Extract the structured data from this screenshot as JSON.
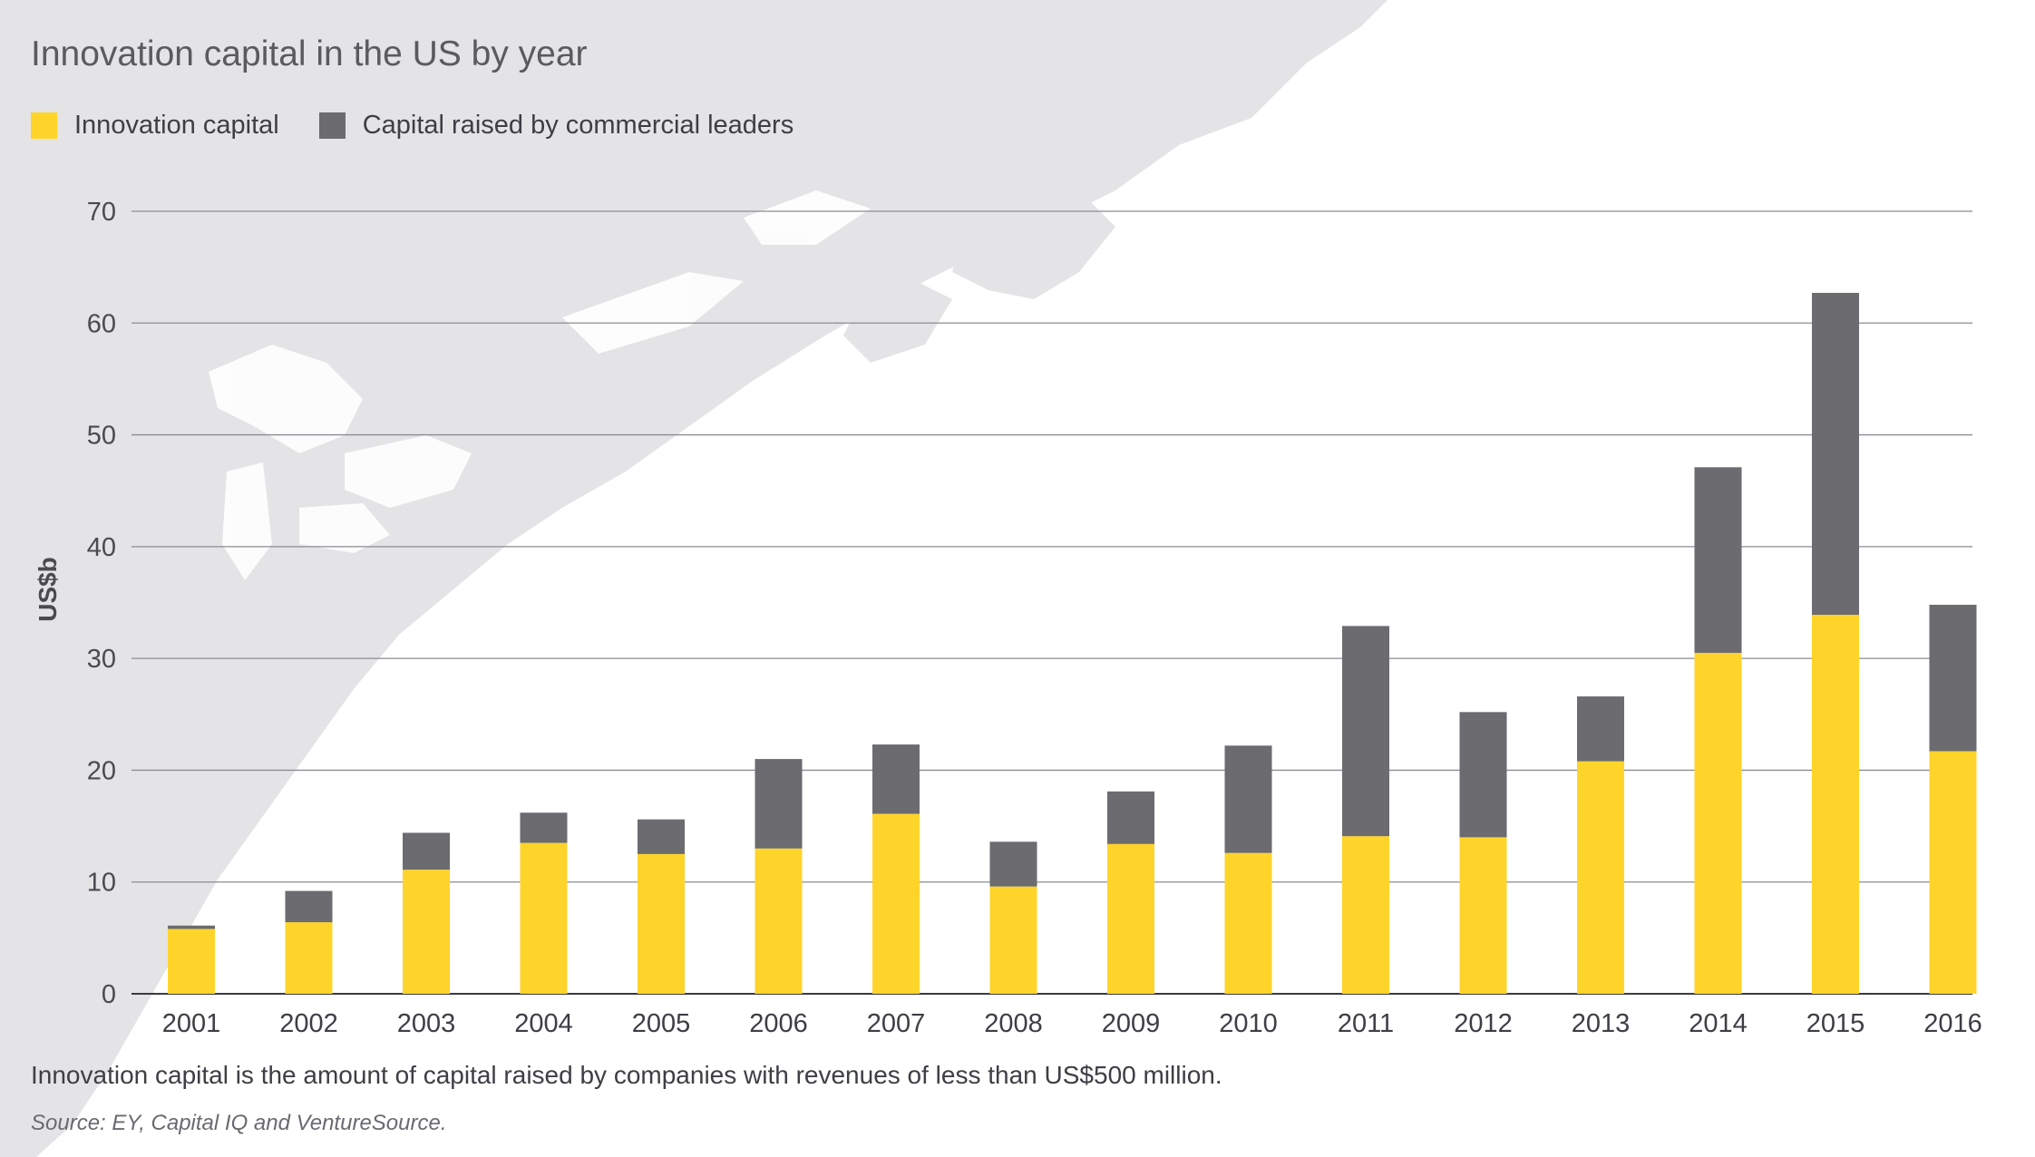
{
  "title": "Innovation capital in the US by year",
  "legend": [
    {
      "label": "Innovation capital",
      "color": "#ffd42a"
    },
    {
      "label": "Capital raised by commercial leaders",
      "color": "#6b6b70"
    }
  ],
  "chart_data": {
    "type": "bar",
    "stacked": true,
    "title": "Innovation capital in the US by year",
    "ylabel": "US$b",
    "xlabel": "",
    "ylim": [
      0,
      70
    ],
    "yticks": [
      0,
      10,
      20,
      30,
      40,
      50,
      60,
      70
    ],
    "grid": true,
    "legend_position": "top-left",
    "categories": [
      "2001",
      "2002",
      "2003",
      "2004",
      "2005",
      "2006",
      "2007",
      "2008",
      "2009",
      "2010",
      "2011",
      "2012",
      "2013",
      "2014",
      "2015",
      "2016"
    ],
    "series": [
      {
        "name": "Innovation capital",
        "color": "#ffd42a",
        "values": [
          5.8,
          6.4,
          11.1,
          13.5,
          12.5,
          13.0,
          16.1,
          9.6,
          13.4,
          12.6,
          14.1,
          14.0,
          20.8,
          30.5,
          33.9,
          21.7
        ]
      },
      {
        "name": "Capital raised by commercial leaders",
        "color": "#6b6b70",
        "values": [
          0.3,
          2.8,
          3.3,
          2.7,
          3.1,
          8.0,
          6.2,
          4.0,
          4.7,
          9.6,
          18.8,
          11.2,
          5.8,
          16.6,
          28.8,
          13.1
        ]
      }
    ]
  },
  "footnote": "Innovation capital is the amount of capital raised by companies with revenues of less than US$500 million.",
  "source": "Source: EY, Capital IQ and VentureSource."
}
